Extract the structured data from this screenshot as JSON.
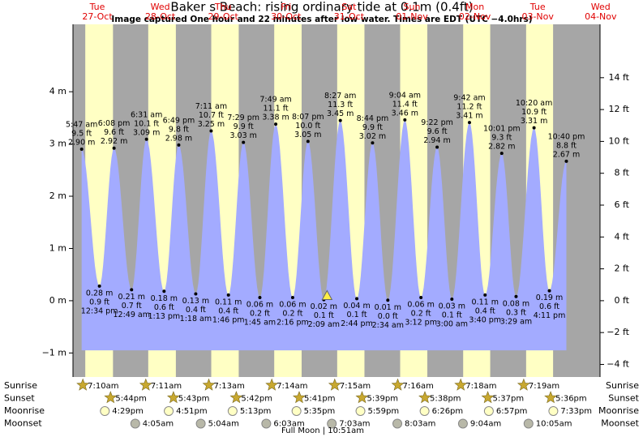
{
  "chart_data": {
    "type": "tide",
    "title": "Baker s Beach: rising  ordinary tide at 0.1m (0.4ft)",
    "subtitle": "Image captured One hour and 22 minutes after low water. Times are EDT (UTC −4.0hrs)",
    "ylim": [
      -1.46,
      5.29
    ],
    "yticks": [
      {
        "value": 4,
        "label": "4 m"
      },
      {
        "value": 3,
        "label": "3 m"
      },
      {
        "value": 2,
        "label": "2 m"
      },
      {
        "value": 1,
        "label": "1 m"
      },
      {
        "value": 0,
        "label": "0 m"
      },
      {
        "value": -1,
        "label": "−1 m"
      }
    ],
    "y2lim": [
      -4.79,
      17.35
    ],
    "y2ticks": [
      {
        "value": 14,
        "label": "14 ft"
      },
      {
        "value": 12,
        "label": "12 ft"
      },
      {
        "value": 10,
        "label": "10 ft"
      },
      {
        "value": 8,
        "label": "8 ft"
      },
      {
        "value": 6,
        "label": "6 ft"
      },
      {
        "value": 4,
        "label": "4 ft"
      },
      {
        "value": 2,
        "label": "2 ft"
      },
      {
        "value": 0,
        "label": "0 ft"
      },
      {
        "value": -2,
        "label": "−2 ft"
      },
      {
        "value": -4,
        "label": "−4 ft"
      }
    ],
    "days": [
      {
        "weekday": "Tue",
        "date": "27-Oct"
      },
      {
        "weekday": "Wed",
        "date": "28-Oct"
      },
      {
        "weekday": "Thu",
        "date": "29-Oct"
      },
      {
        "weekday": "Fri",
        "date": "30-Oct"
      },
      {
        "weekday": "Sat",
        "date": "31-Oct"
      },
      {
        "weekday": "Sun",
        "date": "01-Nov"
      },
      {
        "weekday": "Mon",
        "date": "02-Nov"
      },
      {
        "weekday": "Tue",
        "date": "03-Nov"
      },
      {
        "weekday": "Wed",
        "date": "04-Nov"
      }
    ],
    "highs": [
      {
        "date": "27-Oct",
        "time": "5:47 am",
        "ft": "9.5 ft",
        "m": 2.9,
        "m_label": "2.90 m"
      },
      {
        "date": "27-Oct",
        "time": "6:08 pm",
        "ft": "9.6 ft",
        "m": 2.92,
        "m_label": "2.92 m"
      },
      {
        "date": "28-Oct",
        "time": "6:31 am",
        "ft": "10.1 ft",
        "m": 3.09,
        "m_label": "3.09 m"
      },
      {
        "date": "28-Oct",
        "time": "6:49 pm",
        "ft": "9.8 ft",
        "m": 2.98,
        "m_label": "2.98 m"
      },
      {
        "date": "29-Oct",
        "time": "7:11 am",
        "ft": "10.7 ft",
        "m": 3.25,
        "m_label": "3.25 m"
      },
      {
        "date": "29-Oct",
        "time": "7:29 pm",
        "ft": "9.9 ft",
        "m": 3.03,
        "m_label": "3.03 m"
      },
      {
        "date": "30-Oct",
        "time": "7:49 am",
        "ft": "11.1 ft",
        "m": 3.38,
        "m_label": "3.38 m"
      },
      {
        "date": "30-Oct",
        "time": "8:07 pm",
        "ft": "10.0 ft",
        "m": 3.05,
        "m_label": "3.05 m"
      },
      {
        "date": "31-Oct",
        "time": "8:27 am",
        "ft": "11.3 ft",
        "m": 3.45,
        "m_label": "3.45 m"
      },
      {
        "date": "31-Oct",
        "time": "8:44 pm",
        "ft": "9.9 ft",
        "m": 3.02,
        "m_label": "3.02 m"
      },
      {
        "date": "01-Nov",
        "time": "9:04 am",
        "ft": "11.4 ft",
        "m": 3.46,
        "m_label": "3.46 m"
      },
      {
        "date": "01-Nov",
        "time": "9:22 pm",
        "ft": "9.6 ft",
        "m": 2.94,
        "m_label": "2.94 m"
      },
      {
        "date": "02-Nov",
        "time": "9:42 am",
        "ft": "11.2 ft",
        "m": 3.41,
        "m_label": "3.41 m"
      },
      {
        "date": "02-Nov",
        "time": "10:01 pm",
        "ft": "9.3 ft",
        "m": 2.82,
        "m_label": "2.82 m"
      },
      {
        "date": "03-Nov",
        "time": "10:20 am",
        "ft": "10.9 ft",
        "m": 3.31,
        "m_label": "3.31 m"
      },
      {
        "date": "03-Nov",
        "time": "10:40 pm",
        "ft": "8.8 ft",
        "m": 2.67,
        "m_label": "2.67 m"
      }
    ],
    "lows": [
      {
        "date": "27-Oct",
        "time": "12:34 pm",
        "ft": "0.9 ft",
        "m": 0.28,
        "m_label": "0.28 m"
      },
      {
        "date": "28-Oct",
        "time": "12:49 am",
        "ft": "0.7 ft",
        "m": 0.21,
        "m_label": "0.21 m"
      },
      {
        "date": "28-Oct",
        "time": "1:13 pm",
        "ft": "0.6 ft",
        "m": 0.18,
        "m_label": "0.18 m"
      },
      {
        "date": "29-Oct",
        "time": "1:18 am",
        "ft": "0.4 ft",
        "m": 0.13,
        "m_label": "0.13 m"
      },
      {
        "date": "29-Oct",
        "time": "1:46 pm",
        "ft": "0.4 ft",
        "m": 0.11,
        "m_label": "0.11 m"
      },
      {
        "date": "30-Oct",
        "time": "1:45 am",
        "ft": "0.2 ft",
        "m": 0.06,
        "m_label": "0.06 m"
      },
      {
        "date": "30-Oct",
        "time": "2:16 pm",
        "ft": "0.2 ft",
        "m": 0.06,
        "m_label": "0.06 m"
      },
      {
        "date": "31-Oct",
        "time": "2:09 am",
        "ft": "0.1 ft",
        "m": 0.02,
        "m_label": "0.02 m"
      },
      {
        "date": "31-Oct",
        "time": "2:44 pm",
        "ft": "0.1 ft",
        "m": 0.04,
        "m_label": "0.04 m"
      },
      {
        "date": "01-Nov",
        "time": "2:34 am",
        "ft": "0.0 ft",
        "m": 0.01,
        "m_label": "0.01 m"
      },
      {
        "date": "01-Nov",
        "time": "3:12 pm",
        "ft": "0.2 ft",
        "m": 0.06,
        "m_label": "0.06 m"
      },
      {
        "date": "02-Nov",
        "time": "3:00 am",
        "ft": "0.1 ft",
        "m": 0.03,
        "m_label": "0.03 m"
      },
      {
        "date": "02-Nov",
        "time": "3:40 pm",
        "ft": "0.4 ft",
        "m": 0.11,
        "m_label": "0.11 m"
      },
      {
        "date": "03-Nov",
        "time": "3:29 am",
        "ft": "0.3 ft",
        "m": 0.08,
        "m_label": "0.08 m"
      },
      {
        "date": "03-Nov",
        "time": "4:11 pm",
        "ft": "0.6 ft",
        "m": 0.19,
        "m_label": "0.19 m"
      }
    ],
    "current_level_m": 0.1,
    "rows": [
      {
        "label": "Sunrise",
        "icon": "star",
        "events": [
          {
            "date": "27-Oct",
            "time": "7:10am"
          },
          {
            "date": "28-Oct",
            "time": "7:11am"
          },
          {
            "date": "29-Oct",
            "time": "7:13am"
          },
          {
            "date": "30-Oct",
            "time": "7:14am"
          },
          {
            "date": "31-Oct",
            "time": "7:15am"
          },
          {
            "date": "01-Nov",
            "time": "7:16am"
          },
          {
            "date": "02-Nov",
            "time": "7:18am"
          },
          {
            "date": "03-Nov",
            "time": "7:19am"
          }
        ]
      },
      {
        "label": "Sunset",
        "icon": "star",
        "events": [
          {
            "date": "27-Oct",
            "time": "5:44pm"
          },
          {
            "date": "28-Oct",
            "time": "5:43pm"
          },
          {
            "date": "29-Oct",
            "time": "5:42pm"
          },
          {
            "date": "30-Oct",
            "time": "5:41pm"
          },
          {
            "date": "31-Oct",
            "time": "5:39pm"
          },
          {
            "date": "01-Nov",
            "time": "5:38pm"
          },
          {
            "date": "02-Nov",
            "time": "5:37pm"
          },
          {
            "date": "03-Nov",
            "time": "5:36pm"
          }
        ]
      },
      {
        "label": "Moonrise",
        "icon": "moonrise",
        "events": [
          {
            "date": "27-Oct",
            "time": "4:29pm"
          },
          {
            "date": "28-Oct",
            "time": "4:51pm"
          },
          {
            "date": "29-Oct",
            "time": "5:13pm"
          },
          {
            "date": "30-Oct",
            "time": "5:35pm"
          },
          {
            "date": "31-Oct",
            "time": "5:59pm"
          },
          {
            "date": "01-Nov",
            "time": "6:26pm"
          },
          {
            "date": "02-Nov",
            "time": "6:57pm"
          },
          {
            "date": "03-Nov",
            "time": "7:33pm"
          }
        ]
      },
      {
        "label": "Moonset",
        "icon": "moonset",
        "events": [
          {
            "date": "28-Oct",
            "time": "4:05am"
          },
          {
            "date": "29-Oct",
            "time": "5:04am"
          },
          {
            "date": "30-Oct",
            "time": "6:03am"
          },
          {
            "date": "31-Oct",
            "time": "7:03am"
          },
          {
            "date": "01-Nov",
            "time": "8:03am"
          },
          {
            "date": "02-Nov",
            "time": "9:04am"
          },
          {
            "date": "03-Nov",
            "time": "10:05am"
          }
        ]
      }
    ],
    "full_moon": "Full Moon | 10:51am"
  }
}
